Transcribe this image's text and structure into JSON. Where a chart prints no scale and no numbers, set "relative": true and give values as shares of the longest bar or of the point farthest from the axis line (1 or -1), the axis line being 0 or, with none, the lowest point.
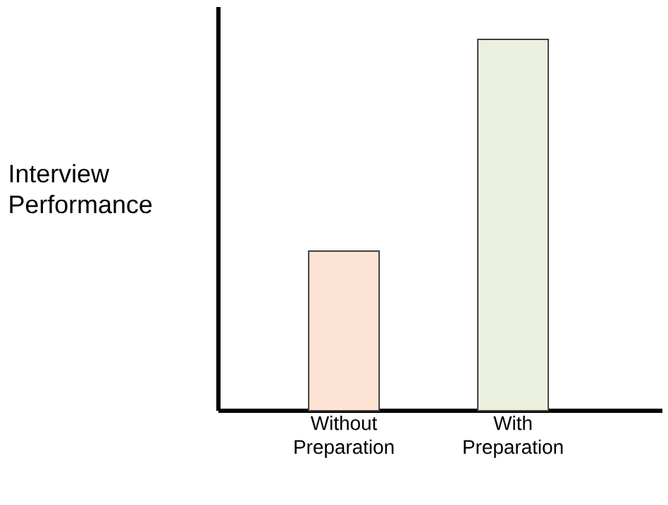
{
  "chart_data": {
    "type": "bar",
    "ylabel": "Interview Performance",
    "categories": [
      "Without Preparation",
      "With Preparation"
    ],
    "values": [
      0.43,
      1
    ],
    "colors": [
      "#fde3d4",
      "#ebf1de"
    ],
    "relative": true
  }
}
